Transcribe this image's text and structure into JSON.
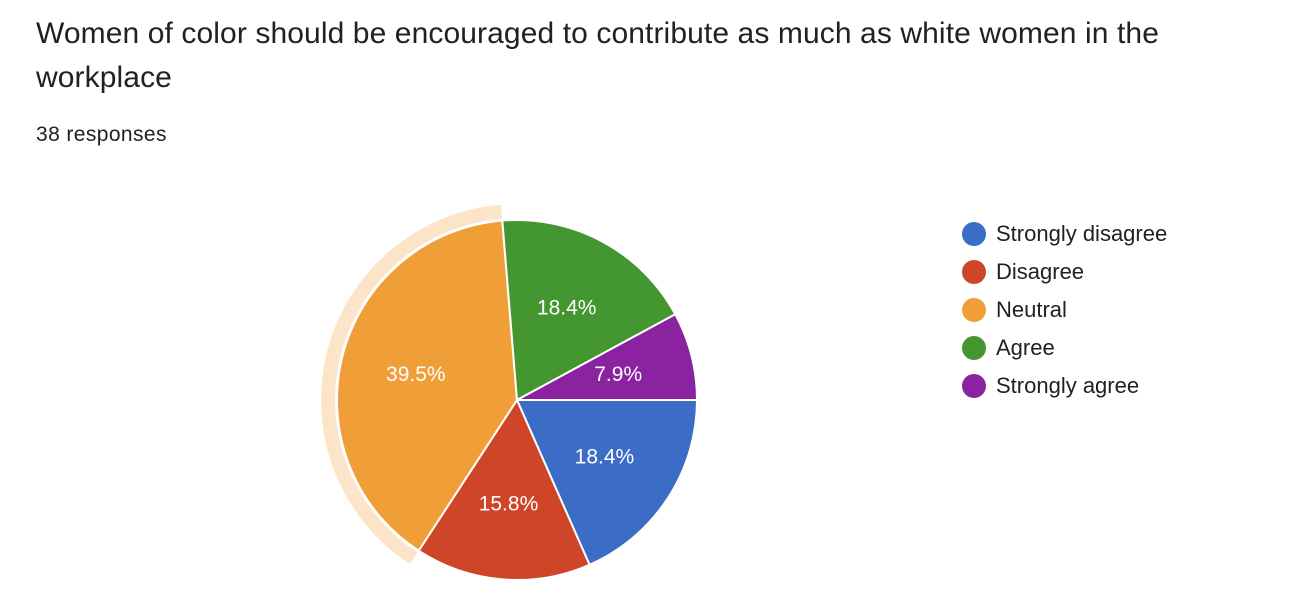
{
  "header": {
    "question": "Women of color should be encouraged to contribute as much as white women in the workplace",
    "responses": "38 responses"
  },
  "chart_data": {
    "type": "pie",
    "title": "Women of color should be encouraged to contribute as much as white women in the workplace",
    "legend_position": "right",
    "highlighted_slice": "Neutral",
    "slices": [
      {
        "label": "Strongly disagree",
        "value": 18.4,
        "display": "18.4%",
        "color": "#3b6cc6"
      },
      {
        "label": "Disagree",
        "value": 15.8,
        "display": "15.8%",
        "color": "#cf4527"
      },
      {
        "label": "Neutral",
        "value": 39.5,
        "display": "39.5%",
        "color": "#f09e38"
      },
      {
        "label": "Agree",
        "value": 18.4,
        "display": "18.4%",
        "color": "#449630"
      },
      {
        "label": "Strongly agree",
        "value": 7.9,
        "display": "7.9%",
        "color": "#8b22a0"
      }
    ]
  }
}
